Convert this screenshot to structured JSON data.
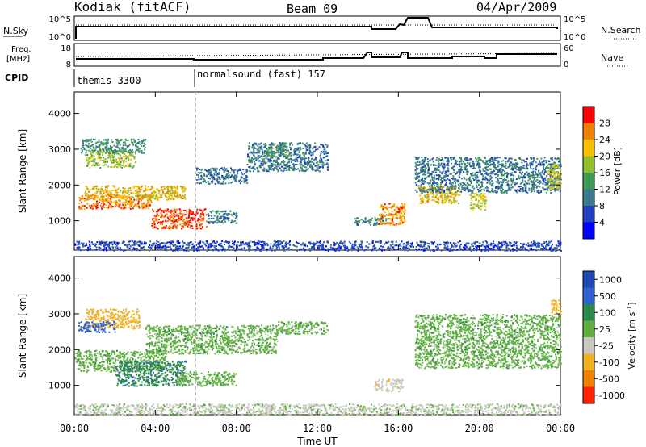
{
  "header": {
    "station": "Kodiak (fitACF)",
    "beam": "Beam 09",
    "date": "04/Apr/2009"
  },
  "top_panels": {
    "nsky_label": "N.Sky",
    "nsky_ticks": [
      "10^5",
      "10^0"
    ],
    "nsearch_label": "N.Search",
    "nsearch_ticks": [
      "10^5",
      "10^0"
    ],
    "freq_label_line1": "Freq.",
    "freq_label_line2": "[MHz]",
    "freq_ticks": [
      "18",
      "8"
    ],
    "nave_label": "Nave",
    "nave_ticks": [
      "60",
      "0"
    ],
    "cpid_label": "CPID",
    "cpid_segments": [
      {
        "start_hour": 0,
        "label": "themis 3300"
      },
      {
        "start_hour": 6,
        "label": "normalsound (fast) 157"
      }
    ]
  },
  "chart_data": [
    {
      "type": "heatmap",
      "title": "Power",
      "ylabel": "Slant Range [km]",
      "xlabel": "",
      "xlim": [
        0,
        24
      ],
      "ylim": [
        180,
        4600
      ],
      "yticks": [
        1000,
        2000,
        3000,
        4000
      ],
      "colorbar": {
        "label": "Power [dB]",
        "range": [
          0,
          32
        ],
        "ticks": [
          4,
          8,
          12,
          16,
          20,
          24,
          28
        ],
        "colors": [
          "#0000ff",
          "#2040c0",
          "#3a7a8a",
          "#3f9a55",
          "#90c030",
          "#f8c000",
          "#f08000",
          "#ff0000"
        ]
      },
      "regions": [
        {
          "t0": 0.2,
          "t1": 3.8,
          "r0": 1350,
          "r1": 1750,
          "value": 26
        },
        {
          "t0": 0.5,
          "t1": 5.5,
          "r0": 1600,
          "r1": 2000,
          "value": 22
        },
        {
          "t0": 0.5,
          "t1": 3.0,
          "r0": 2500,
          "r1": 3000,
          "value": 18
        },
        {
          "t0": 0.3,
          "t1": 3.5,
          "r0": 2900,
          "r1": 3300,
          "value": 12
        },
        {
          "t0": 3.8,
          "t1": 6.5,
          "r0": 800,
          "r1": 1350,
          "value": 28
        },
        {
          "t0": 6.5,
          "t1": 8.0,
          "r0": 950,
          "r1": 1300,
          "value": 10
        },
        {
          "t0": 6.0,
          "t1": 8.5,
          "r0": 2050,
          "r1": 2500,
          "value": 9
        },
        {
          "t0": 8.5,
          "t1": 12.5,
          "r0": 2400,
          "r1": 3200,
          "value": 10
        },
        {
          "t0": 9.5,
          "t1": 10.5,
          "r0": 2800,
          "r1": 3200,
          "value": 14
        },
        {
          "t0": 13.8,
          "t1": 15.5,
          "r0": 900,
          "r1": 1100,
          "value": 11
        },
        {
          "t0": 15.0,
          "t1": 16.3,
          "r0": 900,
          "r1": 1500,
          "value": 25
        },
        {
          "t0": 17.0,
          "t1": 19.0,
          "r0": 1500,
          "r1": 2000,
          "value": 22
        },
        {
          "t0": 16.8,
          "t1": 24.0,
          "r0": 1800,
          "r1": 2800,
          "value": 10
        },
        {
          "t0": 19.5,
          "t1": 20.3,
          "r0": 1300,
          "r1": 1800,
          "value": 20
        },
        {
          "t0": 23.3,
          "t1": 24.0,
          "r0": 1900,
          "r1": 2600,
          "value": 20
        },
        {
          "t0": 0.0,
          "t1": 24.0,
          "r0": 180,
          "r1": 450,
          "value": 6
        }
      ]
    },
    {
      "type": "heatmap",
      "title": "Velocity",
      "ylabel": "Slant Range [km]",
      "xlabel": "Time UT",
      "xlim": [
        0,
        24
      ],
      "xticks": [
        "00:00",
        "04:00",
        "08:00",
        "12:00",
        "16:00",
        "20:00",
        "00:00"
      ],
      "ylim": [
        180,
        4600
      ],
      "yticks": [
        1000,
        2000,
        3000,
        4000
      ],
      "colorbar": {
        "label": "Velocity [m s^-1]",
        "ticks": [
          "1000",
          "500",
          "100",
          "25",
          "-25",
          "-100",
          "-500",
          "-1000"
        ],
        "colors": [
          "#1a4ab0",
          "#3060d0",
          "#2a8a4a",
          "#60b040",
          "#c8c8c0",
          "#f0b020",
          "#f08000",
          "#ff2000"
        ]
      },
      "regions": [
        {
          "t0": 0.5,
          "t1": 3.2,
          "r0": 2600,
          "r1": 3150,
          "value": -150
        },
        {
          "t0": 0.2,
          "t1": 2.0,
          "r0": 2500,
          "r1": 2800,
          "value": 200
        },
        {
          "t0": 0.0,
          "t1": 4.5,
          "r0": 1400,
          "r1": 2000,
          "value": 0
        },
        {
          "t0": 3.5,
          "t1": 10.0,
          "r0": 1900,
          "r1": 2700,
          "value": 0
        },
        {
          "t0": 2.0,
          "t1": 5.5,
          "r0": 1000,
          "r1": 1700,
          "value": 80
        },
        {
          "t0": 5.0,
          "t1": 8.0,
          "r0": 1000,
          "r1": 1400,
          "value": 0
        },
        {
          "t0": 10.0,
          "t1": 12.5,
          "r0": 2450,
          "r1": 2800,
          "value": 0
        },
        {
          "t0": 14.8,
          "t1": 16.2,
          "r0": 850,
          "r1": 1200,
          "value": -80
        },
        {
          "t0": 16.8,
          "t1": 24.0,
          "r0": 1500,
          "r1": 3000,
          "value": 0
        },
        {
          "t0": 23.5,
          "t1": 24.0,
          "r0": 3000,
          "r1": 3400,
          "value": -300
        },
        {
          "t0": 0.0,
          "t1": 24.0,
          "r0": 180,
          "r1": 500,
          "value": -40
        }
      ]
    }
  ]
}
